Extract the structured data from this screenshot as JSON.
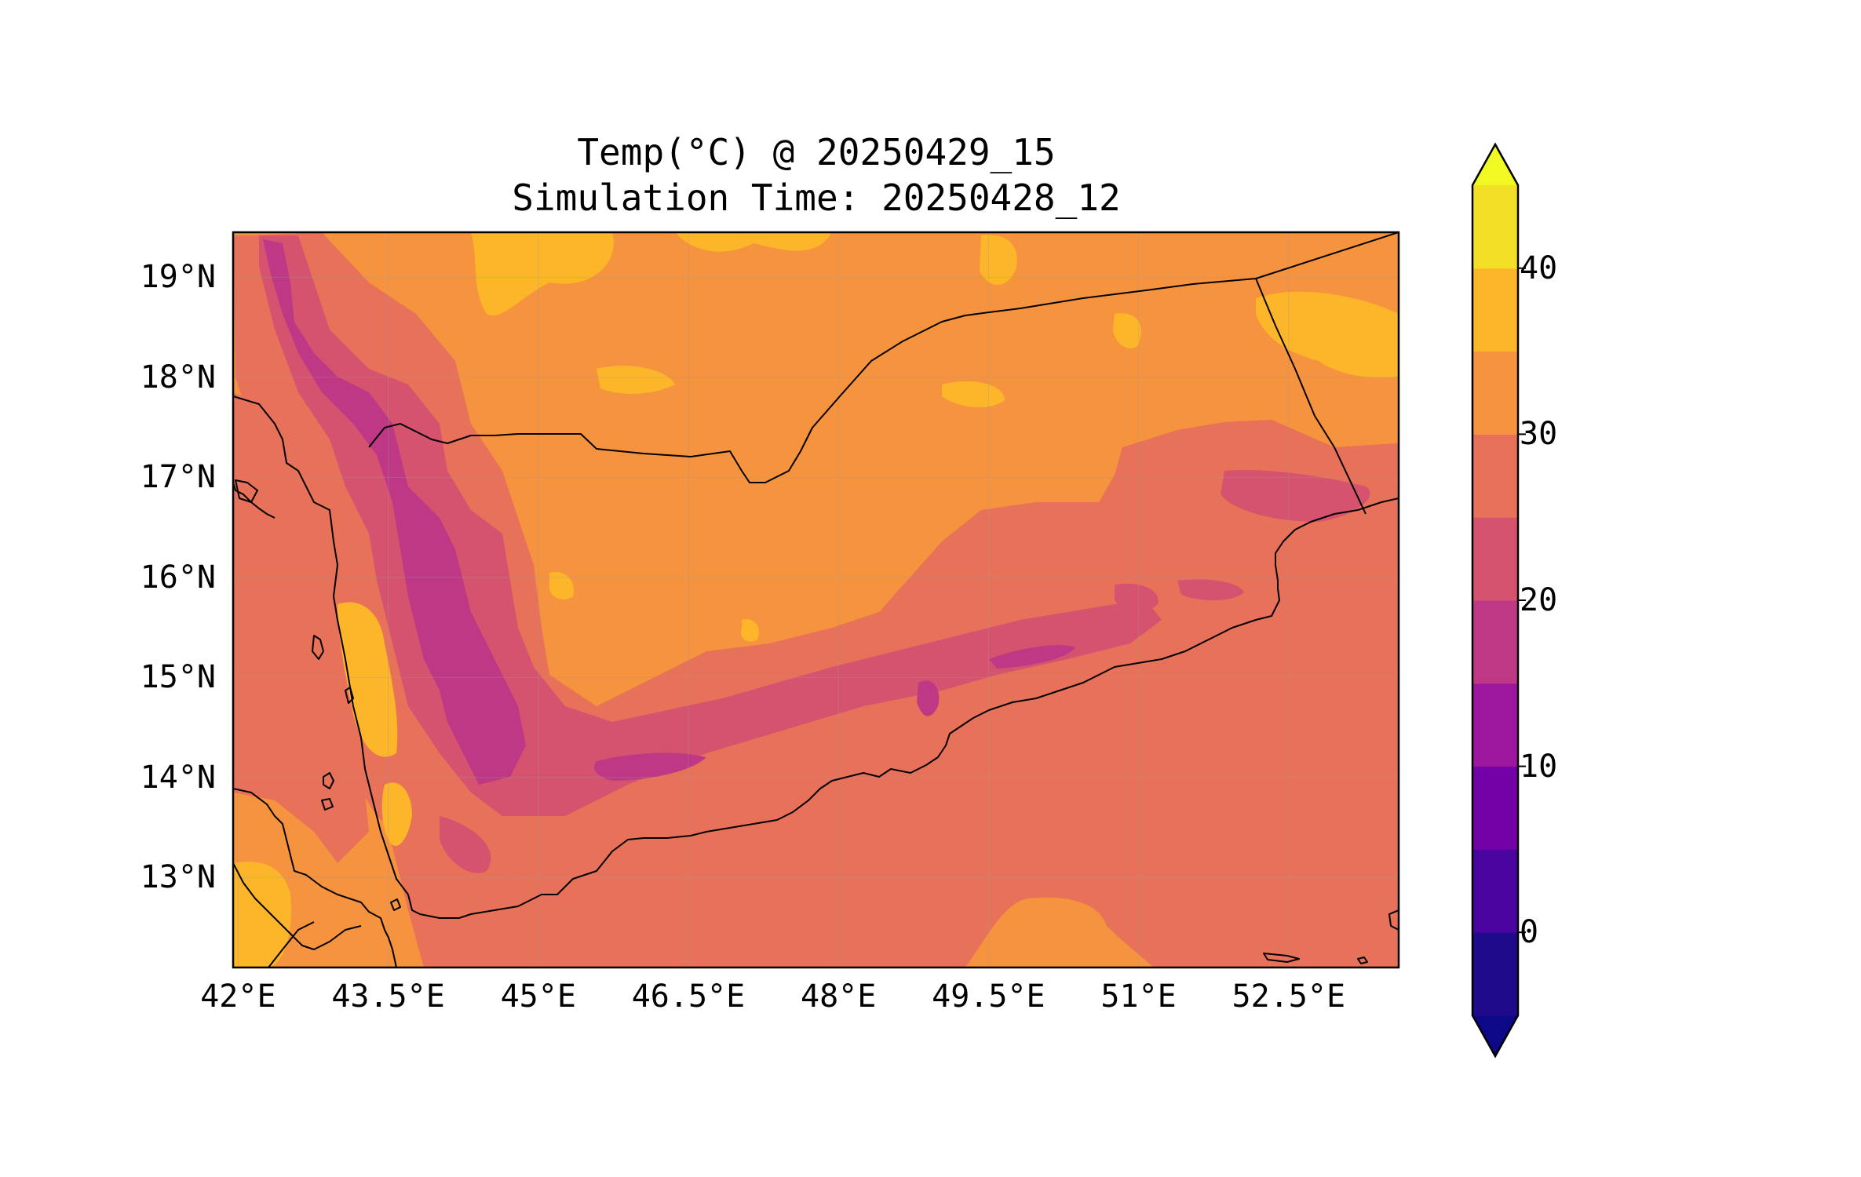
{
  "title": {
    "line1": "Temp(°C) @ 20250429_15",
    "line2": "Simulation Time: 20250428_12"
  },
  "map": {
    "lon_range": [
      41.95,
      53.6
    ],
    "lat_range": [
      12.1,
      19.45
    ],
    "lon_ticks": [
      "42°E",
      "43.5°E",
      "45°E",
      "46.5°E",
      "48°E",
      "49.5°E",
      "51°E",
      "52.5°E"
    ],
    "lon_tick_values": [
      42,
      43.5,
      45,
      46.5,
      48,
      49.5,
      51,
      52.5
    ],
    "lat_ticks": [
      "19°N",
      "18°N",
      "17°N",
      "16°N",
      "15°N",
      "14°N",
      "13°N"
    ],
    "lat_tick_values": [
      19,
      18,
      17,
      16,
      15,
      14,
      13
    ],
    "grid": true
  },
  "colorbar": {
    "levels": [
      -5,
      0,
      5,
      10,
      15,
      20,
      25,
      30,
      35,
      40,
      45
    ],
    "colors": [
      "#1e0a8a",
      "#4a04a0",
      "#7401a8",
      "#9c179e",
      "#be3885",
      "#d5536f",
      "#e8715a",
      "#f6933e",
      "#fdb62a",
      "#f3e026"
    ],
    "under_color": "#0d0887",
    "over_color": "#f0f921",
    "extend": "both",
    "tick_labels": [
      "0",
      "10",
      "20",
      "30",
      "40"
    ],
    "tick_values": [
      0,
      10,
      20,
      30,
      40
    ]
  }
}
